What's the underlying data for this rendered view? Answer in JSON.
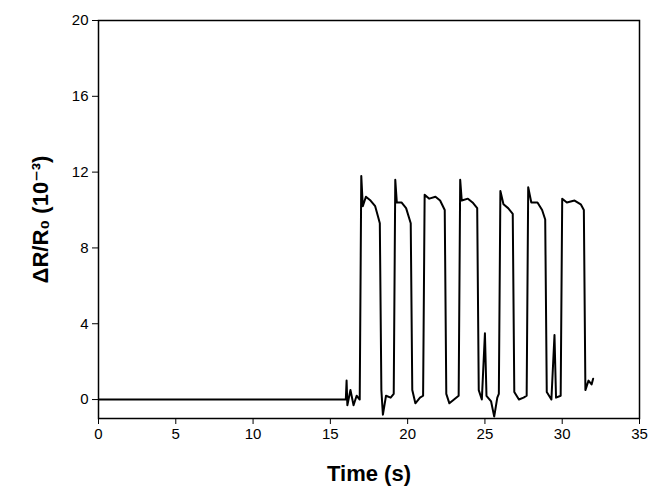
{
  "chart_data": {
    "type": "line",
    "x_label": "Time (s)",
    "y_label": "ΔR/R₀ (10⁻³)",
    "xlim": [
      0,
      35
    ],
    "xticks": [
      0,
      5,
      10,
      15,
      20,
      25,
      30,
      35
    ],
    "ylim": [
      -1,
      20
    ],
    "yticks": [
      0,
      4,
      8,
      12,
      16,
      20
    ],
    "grid": false,
    "color": "#000000",
    "x": [
      0,
      16.0,
      16.05,
      16.1,
      16.3,
      16.5,
      16.7,
      16.9,
      17.0,
      17.1,
      17.3,
      17.6,
      17.9,
      18.1,
      18.2,
      18.3,
      18.4,
      18.6,
      18.9,
      19.1,
      19.2,
      19.3,
      19.6,
      19.9,
      20.2,
      20.3,
      20.5,
      20.8,
      21.0,
      21.1,
      21.4,
      21.8,
      22.1,
      22.4,
      22.5,
      22.7,
      23.0,
      23.3,
      23.4,
      23.5,
      23.9,
      24.2,
      24.5,
      24.6,
      24.8,
      25.0,
      25.1,
      25.4,
      25.6,
      25.8,
      25.9,
      26.0,
      26.2,
      26.5,
      26.8,
      26.9,
      27.2,
      27.5,
      27.7,
      27.8,
      28.0,
      28.4,
      28.7,
      28.9,
      29.0,
      29.3,
      29.5,
      29.6,
      29.9,
      30.0,
      30.3,
      30.8,
      31.2,
      31.4,
      31.5,
      31.7,
      31.9,
      32.0
    ],
    "values": [
      0,
      0,
      1.0,
      -0.3,
      0.5,
      -0.3,
      0.2,
      0.0,
      11.8,
      10.2,
      10.7,
      10.5,
      10.2,
      9.6,
      9.3,
      0.5,
      -0.8,
      0.2,
      0.1,
      0.3,
      11.6,
      10.4,
      10.4,
      10.1,
      9.3,
      0.5,
      -0.2,
      0.1,
      0.2,
      10.8,
      10.6,
      10.7,
      10.5,
      10.0,
      0.3,
      -0.2,
      0.0,
      0.2,
      11.6,
      10.5,
      10.6,
      10.4,
      10.1,
      0.5,
      0.0,
      3.5,
      0.2,
      -0.1,
      -0.9,
      0.1,
      0.3,
      11.0,
      10.3,
      10.1,
      9.8,
      0.4,
      0.0,
      0.1,
      0.2,
      11.2,
      10.4,
      10.4,
      10.0,
      9.5,
      0.4,
      0.0,
      3.4,
      0.1,
      0.2,
      10.6,
      10.4,
      10.5,
      10.3,
      10.0,
      0.5,
      1.0,
      0.8,
      1.1
    ]
  }
}
